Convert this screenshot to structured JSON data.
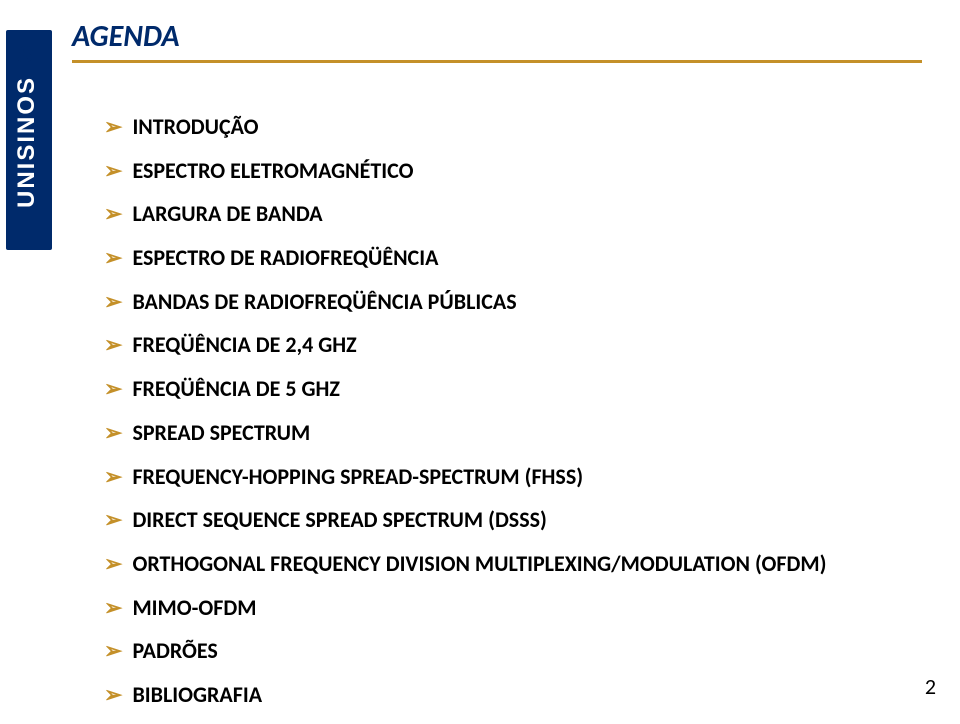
{
  "title": "AGENDA",
  "title_color": "#002a6b",
  "underline_color": "#c49029",
  "arrow_color": "#c49029",
  "logo_text": "UNISINOS",
  "items": [
    "INTRODUÇÃO",
    "ESPECTRO ELETROMAGNÉTICO",
    "LARGURA DE BANDA",
    "ESPECTRO DE RADIOFREQÜÊNCIA",
    "BANDAS DE RADIOFREQÜÊNCIA PÚBLICAS",
    "FREQÜÊNCIA DE 2,4 GHZ",
    "FREQÜÊNCIA DE 5 GHZ",
    "SPREAD SPECTRUM",
    "FREQUENCY-HOPPING SPREAD-SPECTRUM (FHSS)",
    "DIRECT SEQUENCE SPREAD SPECTRUM (DSSS)",
    "ORTHOGONAL FREQUENCY DIVISION MULTIPLEXING/MODULATION (OFDM)",
    "MIMO-OFDM",
    "PADRÕES",
    "BIBLIOGRAFIA"
  ],
  "page_number": "2"
}
